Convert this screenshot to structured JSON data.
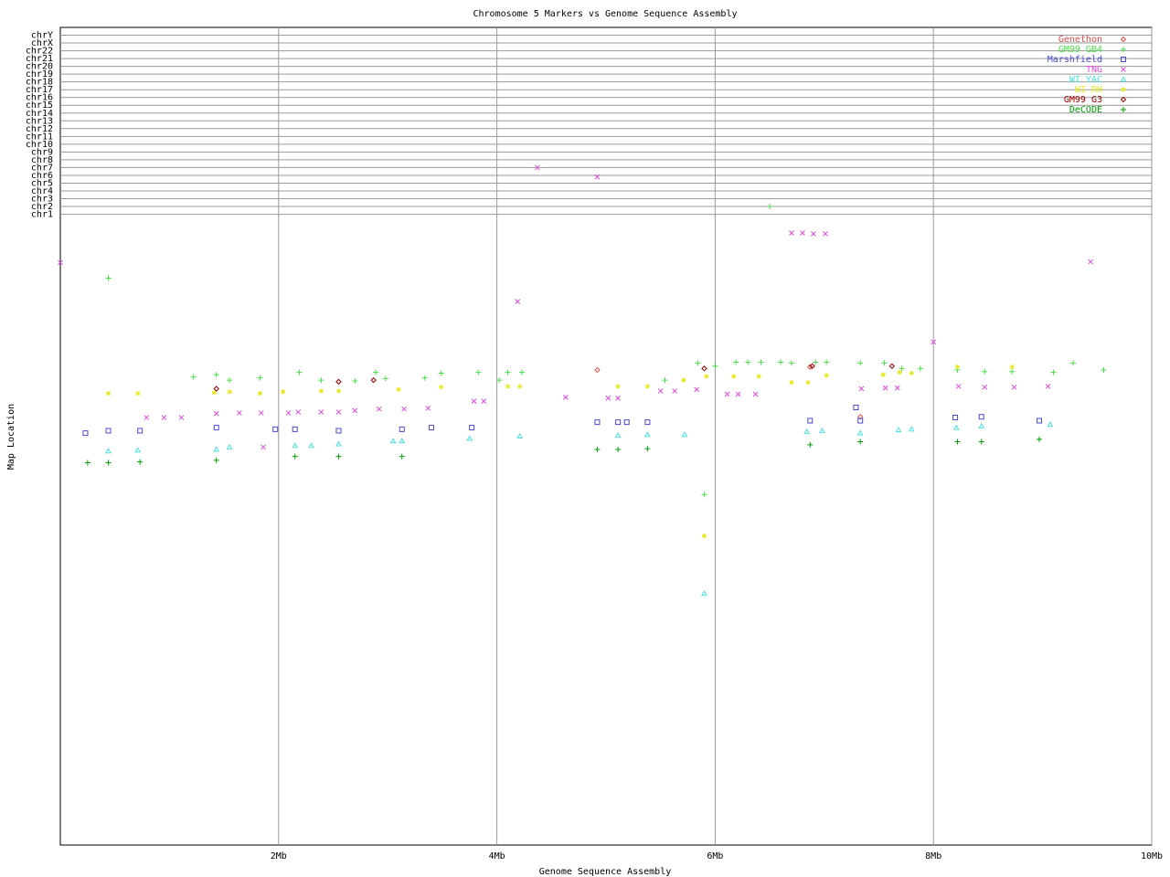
{
  "chart_data": {
    "type": "scatter",
    "title": "Chromosome 5 Markers vs Genome Sequence Assembly",
    "x_label": "Genome Sequence Assembly",
    "y_label": "Map Location",
    "xlim": [
      0,
      10
    ],
    "xticks": [
      {
        "value": 2,
        "label": "2Mb"
      },
      {
        "value": 4,
        "label": "4Mb"
      },
      {
        "value": 6,
        "label": "6Mb"
      },
      {
        "value": 8,
        "label": "8Mb"
      },
      {
        "value": 10,
        "label": "10Mb"
      }
    ],
    "ylim": [
      0,
      105
    ],
    "yticks": [
      {
        "value": 81,
        "label": "chr1"
      },
      {
        "value": 82,
        "label": "chr2"
      },
      {
        "value": 83,
        "label": "chr3"
      },
      {
        "value": 84,
        "label": "chr4"
      },
      {
        "value": 85,
        "label": "chr5"
      },
      {
        "value": 86,
        "label": "chr6"
      },
      {
        "value": 87,
        "label": "chr7"
      },
      {
        "value": 88,
        "label": "chr8"
      },
      {
        "value": 89,
        "label": "chr9"
      },
      {
        "value": 90,
        "label": "chr10"
      },
      {
        "value": 91,
        "label": "chr11"
      },
      {
        "value": 92,
        "label": "chr12"
      },
      {
        "value": 93,
        "label": "chr13"
      },
      {
        "value": 94,
        "label": "chr14"
      },
      {
        "value": 95,
        "label": "chr15"
      },
      {
        "value": 96,
        "label": "chr16"
      },
      {
        "value": 97,
        "label": "chr17"
      },
      {
        "value": 98,
        "label": "chr18"
      },
      {
        "value": 99,
        "label": "chr19"
      },
      {
        "value": 100,
        "label": "chr20"
      },
      {
        "value": 101,
        "label": "chr21"
      },
      {
        "value": 102,
        "label": "chr22"
      },
      {
        "value": 103,
        "label": "chrX"
      },
      {
        "value": 104,
        "label": "chrY"
      }
    ],
    "grid": true,
    "legend": "top-right",
    "series": [
      {
        "name": "Genethon",
        "color": "#e04848",
        "marker": "diamond",
        "x": [
          4.92,
          2.55,
          6.87,
          7.33
        ],
        "values": [
          61.0,
          59.5,
          61.4,
          55.0
        ]
      },
      {
        "name": "GM99 GB4",
        "color": "#48e048",
        "marker": "plus",
        "x": [
          0.44,
          1.22,
          1.43,
          1.55,
          1.83,
          2.19,
          2.39,
          2.7,
          2.89,
          2.98,
          3.34,
          3.49,
          3.83,
          4.02,
          4.1,
          4.23,
          5.54,
          5.84,
          6.0,
          6.19,
          6.3,
          6.42,
          6.5,
          6.6,
          6.7,
          6.92,
          7.02,
          7.33,
          7.55,
          7.71,
          7.88,
          8.22,
          8.47,
          8.72,
          9.1,
          9.28,
          9.56,
          5.9
        ],
        "values": [
          72.8,
          60.1,
          60.4,
          59.7,
          60.0,
          60.7,
          59.7,
          59.6,
          60.7,
          59.9,
          60.0,
          60.6,
          60.7,
          59.7,
          60.7,
          60.7,
          59.7,
          61.9,
          61.5,
          62.0,
          62.0,
          62.0,
          82.0,
          62.0,
          61.9,
          62.0,
          62.0,
          61.9,
          61.9,
          61.2,
          61.2,
          61.0,
          60.8,
          60.8,
          60.7,
          61.9,
          61.0,
          45.0
        ]
      },
      {
        "name": "Marshfield",
        "color": "#4848d8",
        "marker": "square",
        "x": [
          0.23,
          0.44,
          0.73,
          1.43,
          1.97,
          2.15,
          2.55,
          3.13,
          3.4,
          3.77,
          4.92,
          5.11,
          5.19,
          5.38,
          6.87,
          7.29,
          7.33,
          8.2,
          8.44,
          8.97
        ],
        "values": [
          52.9,
          53.2,
          53.2,
          53.6,
          53.4,
          53.4,
          53.2,
          53.4,
          53.6,
          53.6,
          54.3,
          54.3,
          54.3,
          54.3,
          54.5,
          56.2,
          54.5,
          54.9,
          55.0,
          54.5
        ]
      },
      {
        "name": "TNG",
        "color": "#e048e0",
        "marker": "cross",
        "x": [
          0.0,
          0.79,
          0.95,
          1.11,
          1.43,
          1.64,
          1.84,
          1.86,
          2.09,
          2.18,
          2.39,
          2.55,
          2.7,
          2.92,
          3.15,
          3.37,
          3.79,
          3.88,
          4.19,
          4.37,
          4.63,
          4.92,
          5.02,
          5.11,
          5.5,
          5.63,
          5.83,
          6.11,
          6.21,
          6.37,
          6.7,
          6.8,
          6.9,
          7.01,
          7.34,
          7.56,
          7.67,
          8.0,
          8.23,
          8.47,
          8.74,
          9.05,
          9.44
        ],
        "values": [
          74.8,
          54.9,
          54.9,
          54.9,
          55.4,
          55.5,
          55.5,
          51.1,
          55.5,
          55.6,
          55.6,
          55.6,
          55.8,
          56.0,
          56.0,
          56.1,
          57.0,
          57.0,
          69.8,
          87.0,
          57.5,
          85.8,
          57.4,
          57.4,
          58.3,
          58.3,
          58.5,
          57.9,
          57.9,
          57.9,
          78.6,
          78.6,
          78.5,
          78.5,
          58.6,
          58.7,
          58.7,
          64.6,
          58.9,
          58.8,
          58.8,
          58.9,
          74.9
        ]
      },
      {
        "name": "WI YAC",
        "color": "#48e0e0",
        "marker": "triangle",
        "x": [
          0.44,
          0.71,
          1.43,
          1.55,
          2.15,
          2.3,
          2.55,
          3.05,
          3.13,
          3.75,
          4.21,
          5.11,
          5.38,
          5.72,
          5.9,
          6.84,
          6.98,
          7.33,
          7.68,
          7.8,
          8.21,
          8.44,
          9.07
        ],
        "values": [
          50.6,
          50.7,
          50.8,
          51.1,
          51.3,
          51.3,
          51.5,
          51.9,
          51.9,
          52.2,
          52.5,
          52.6,
          52.7,
          52.7,
          32.3,
          53.1,
          53.2,
          52.9,
          53.3,
          53.4,
          53.6,
          53.8,
          54.0
        ]
      },
      {
        "name": "WI RH",
        "color": "#e8e820",
        "marker": "star",
        "x": [
          0.44,
          0.71,
          1.41,
          1.55,
          1.83,
          2.04,
          2.39,
          2.55,
          3.1,
          3.49,
          4.1,
          4.21,
          5.11,
          5.38,
          5.71,
          5.9,
          5.92,
          6.17,
          6.4,
          6.7,
          6.85,
          7.02,
          7.54,
          7.69,
          7.8,
          8.22,
          8.72
        ],
        "values": [
          58.0,
          58.0,
          58.1,
          58.2,
          58.0,
          58.2,
          58.3,
          58.3,
          58.5,
          58.8,
          58.9,
          58.9,
          58.9,
          58.9,
          59.7,
          39.7,
          60.2,
          60.2,
          60.2,
          59.4,
          59.4,
          60.3,
          60.4,
          60.7,
          60.6,
          61.4,
          61.4
        ]
      },
      {
        "name": "GM99 G3",
        "color": "#a00000",
        "marker": "diamond",
        "x": [
          1.43,
          2.55,
          2.87,
          5.9,
          6.89,
          7.62
        ],
        "values": [
          58.6,
          59.5,
          59.7,
          61.2,
          61.5,
          61.5
        ]
      },
      {
        "name": "DeCODE",
        "color": "#00a000",
        "marker": "plus",
        "x": [
          0.25,
          0.44,
          0.73,
          1.43,
          2.15,
          2.55,
          3.13,
          4.92,
          5.11,
          5.38,
          6.87,
          7.33,
          8.22,
          8.44,
          8.97
        ],
        "values": [
          49.1,
          49.1,
          49.2,
          49.4,
          49.9,
          49.9,
          49.9,
          50.8,
          50.8,
          50.9,
          51.4,
          51.8,
          51.8,
          51.8,
          52.1
        ]
      }
    ]
  }
}
